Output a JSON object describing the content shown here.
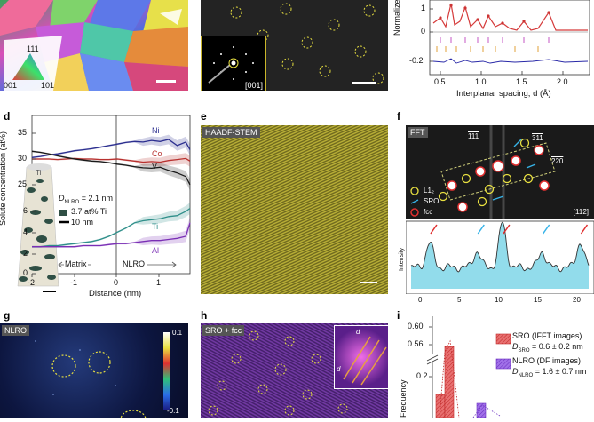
{
  "panels": {
    "d": {
      "letter": "d",
      "chart_data": {
        "type": "line",
        "ylabel": "Solute concentration (at%)",
        "xlabel": "Distance (nm)",
        "xlim": [
          -2,
          1.7
        ],
        "xticks": [
          "-2",
          "-1",
          "0",
          "1"
        ],
        "yticks_upper": [
          "25",
          "30",
          "35"
        ],
        "yticks_lower": [
          "0",
          "2",
          "4",
          "6"
        ],
        "series": [
          {
            "name": "Ni",
            "color": "#2b2e8f",
            "x": [
              -2.0,
              -1.8,
              -1.6,
              -1.4,
              -1.2,
              -1.0,
              -0.8,
              -0.6,
              -0.4,
              -0.2,
              0.0,
              0.2,
              0.4,
              0.6,
              0.8,
              1.0,
              1.2,
              1.4,
              1.6,
              1.7
            ],
            "y": [
              30.3,
              30.5,
              30.8,
              31.0,
              31.3,
              31.6,
              31.8,
              32.0,
              32.3,
              32.6,
              32.9,
              33.2,
              33.4,
              33.3,
              33.6,
              33.4,
              33.8,
              32.6,
              33.3,
              31.8
            ]
          },
          {
            "name": "Co",
            "color": "#b8312f",
            "x": [
              -2.0,
              -1.8,
              -1.6,
              -1.4,
              -1.2,
              -1.0,
              -0.8,
              -0.6,
              -0.4,
              -0.2,
              0.0,
              0.2,
              0.4,
              0.6,
              0.8,
              1.0,
              1.2,
              1.4,
              1.6,
              1.7
            ],
            "y": [
              30.0,
              30.0,
              30.0,
              29.9,
              30.0,
              30.1,
              30.0,
              30.0,
              29.9,
              29.9,
              30.0,
              29.8,
              29.6,
              29.4,
              29.5,
              29.4,
              29.7,
              29.9,
              30.1,
              29.6
            ]
          },
          {
            "name": "V",
            "color": "#1a1a1a",
            "x": [
              -2.0,
              -1.8,
              -1.6,
              -1.4,
              -1.2,
              -1.0,
              -0.8,
              -0.6,
              -0.4,
              -0.2,
              0.0,
              0.2,
              0.4,
              0.6,
              0.8,
              1.0,
              1.2,
              1.4,
              1.6,
              1.7
            ],
            "y": [
              31.5,
              31.3,
              31.0,
              30.6,
              30.3,
              30.0,
              29.8,
              29.6,
              29.5,
              29.3,
              29.0,
              28.8,
              28.5,
              28.3,
              28.2,
              28.4,
              27.8,
              27.3,
              26.6,
              25.0
            ]
          },
          {
            "name": "Ti",
            "color": "#2f8f8a",
            "x": [
              -2.0,
              -1.8,
              -1.6,
              -1.4,
              -1.2,
              -1.0,
              -0.8,
              -0.6,
              -0.4,
              -0.2,
              0.0,
              0.2,
              0.4,
              0.6,
              0.8,
              1.0,
              1.2,
              1.4,
              1.6,
              1.7
            ],
            "y": [
              2.6,
              2.6,
              2.7,
              2.7,
              2.8,
              2.9,
              3.0,
              3.1,
              3.3,
              3.6,
              4.0,
              4.4,
              4.9,
              5.1,
              5.2,
              5.3,
              5.5,
              5.6,
              6.0,
              6.3
            ]
          },
          {
            "name": "Al",
            "color": "#7a2fb5",
            "x": [
              -2.0,
              -1.8,
              -1.6,
              -1.4,
              -1.2,
              -1.0,
              -0.8,
              -0.6,
              -0.4,
              -0.2,
              0.0,
              0.2,
              0.4,
              0.6,
              0.8,
              1.0,
              1.2,
              1.4,
              1.6,
              1.7
            ],
            "y": [
              2.6,
              2.6,
              2.6,
              2.6,
              2.6,
              2.6,
              2.7,
              2.7,
              2.7,
              2.8,
              2.9,
              2.9,
              3.0,
              3.1,
              3.2,
              3.2,
              3.3,
              3.4,
              3.6,
              4.9
            ]
          }
        ],
        "annotations": {
          "dnlro": "= 2.1 nm",
          "ti_iso": "3.7 at% Ti",
          "scale": "10 nm",
          "matrix": "Matrix",
          "nlro": "NLRO",
          "inset_label": "Ti"
        }
      }
    },
    "e": {
      "letter": "e",
      "label": "HAADF-STEM"
    },
    "f": {
      "letter": "f",
      "label": "FFT",
      "zone": "[112]",
      "spots": {
        "s111": "111",
        "s311": "311",
        "s220": "220"
      },
      "legend": {
        "l12": "L1₂",
        "sro": "SRO",
        "fcc": "fcc"
      },
      "chart_data": {
        "type": "line",
        "ylabel": "Intensity",
        "xticks": [
          "0",
          "5",
          "10",
          "15",
          "20"
        ],
        "xlim": [
          0,
          21
        ],
        "peaks_x": [
          2.2,
          7.8,
          10.8,
          15.5,
          20.0
        ]
      }
    },
    "g": {
      "letter": "g",
      "label": "NLRO",
      "cbar_top": "0.1",
      "cbar_bottom": "-0.1"
    },
    "h": {
      "letter": "h",
      "label": "SRO + fcc",
      "inset_d1": "d",
      "inset_d2": "d"
    },
    "i": {
      "letter": "i",
      "chart_data": {
        "type": "bar",
        "ylabel": "Frequency",
        "yticks": [
          "0.56",
          "0.60",
          "0.2"
        ],
        "series": [
          {
            "name": "SRO (IFFT images)",
            "color": "#d9393a",
            "stat": "= 0.6 ± 0.2 nm",
            "sub": "SRO"
          },
          {
            "name": "NLRO (DF images)",
            "color": "#8a3fd8",
            "stat": "= 1.6 ± 0.7 nm",
            "sub": "NLRO"
          }
        ]
      }
    },
    "top": {
      "a_labels": {
        "l111": "111",
        "l001": "001",
        "l101": "101"
      },
      "b_zone": "[001]",
      "c_ylabel": "Normalize",
      "c_yticks": [
        "1",
        "0",
        "-0.2"
      ],
      "c_xticks": [
        "0.5",
        "1.0",
        "1.5",
        "2.0"
      ],
      "c_xlabel": "Interplanar spacing, d (Å)"
    }
  }
}
